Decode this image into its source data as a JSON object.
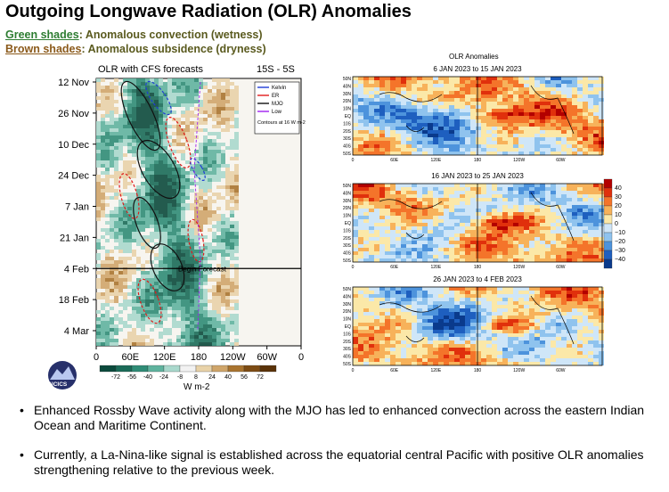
{
  "title": "Outgoing Longwave Radiation (OLR) Anomalies",
  "legend": {
    "green_label": "Green shades",
    "green_text": ": Anomalous convection (wetness)",
    "brown_label": "Brown shades",
    "brown_text": ": Anomalous subsidence (dryness)"
  },
  "chart_data": [
    {
      "type": "heatmap",
      "title": "OLR with CFS forecasts",
      "subtitle": "15S - 5S",
      "y_ticks": [
        "12 Nov",
        "26 Nov",
        "10 Dec",
        "24 Dec",
        "7 Jan",
        "21 Jan",
        "4 Feb",
        "18 Feb",
        "4 Mar"
      ],
      "x_ticks": [
        "0",
        "60E",
        "120E",
        "180",
        "120W",
        "60W",
        "0"
      ],
      "forecast_start": "4 Feb",
      "forecast_label": "Begin Forecast",
      "legend_entries": [
        "Kelvin",
        "ER",
        "MJO",
        "Low"
      ],
      "legend_colors": [
        "#1f3bd6",
        "#e01b1b",
        "#111111",
        "#a020f0"
      ],
      "contour_note": "Contours at 16 W m-2",
      "colorbar_ticks": [
        "-72",
        "-56",
        "-40",
        "-24",
        "-8",
        "8",
        "24",
        "40",
        "56",
        "72"
      ],
      "colorbar_colors": [
        "#0b4a3c",
        "#1a6b58",
        "#2f8c76",
        "#5fb39e",
        "#a9d8cc",
        "#f2f2f2",
        "#e8d2a8",
        "#cfa56a",
        "#a9742f",
        "#7d4c14",
        "#5a3208"
      ],
      "colorbar_unit": "W m-2",
      "logo_text": "NCICS"
    },
    {
      "type": "heatmap",
      "title": "OLR Anomalies",
      "panels": [
        {
          "period": "6 JAN 2023 to 15 JAN 2023"
        },
        {
          "period": "16 JAN 2023 to 25 JAN 2023"
        },
        {
          "period": "26 JAN 2023 to 4 FEB 2023"
        }
      ],
      "lat_ticks": [
        "50N",
        "40N",
        "30N",
        "20N",
        "10N",
        "EQ",
        "10S",
        "20S",
        "30S",
        "40S",
        "50S"
      ],
      "lon_ticks": [
        "0",
        "60E",
        "120E",
        "180",
        "120W",
        "60W"
      ],
      "colorbar_ticks": [
        "40",
        "30",
        "20",
        "10",
        "0",
        "−10",
        "−20",
        "−30",
        "−40"
      ],
      "colorbar_colors": [
        "#b30000",
        "#e0300c",
        "#f4742a",
        "#f7b25a",
        "#fbe8a8",
        "#cfe6f8",
        "#8fc3ee",
        "#4d93dc",
        "#1e5fbf",
        "#0a3a8c"
      ]
    }
  ],
  "bullets": [
    "Enhanced Rossby Wave activity along with the MJO has led to enhanced convection across the eastern Indian Ocean and Maritime Continent.",
    "Currently, a La-Nina-like signal is established across the equatorial central Pacific with positive OLR anomalies strengthening relative to the previous week."
  ]
}
